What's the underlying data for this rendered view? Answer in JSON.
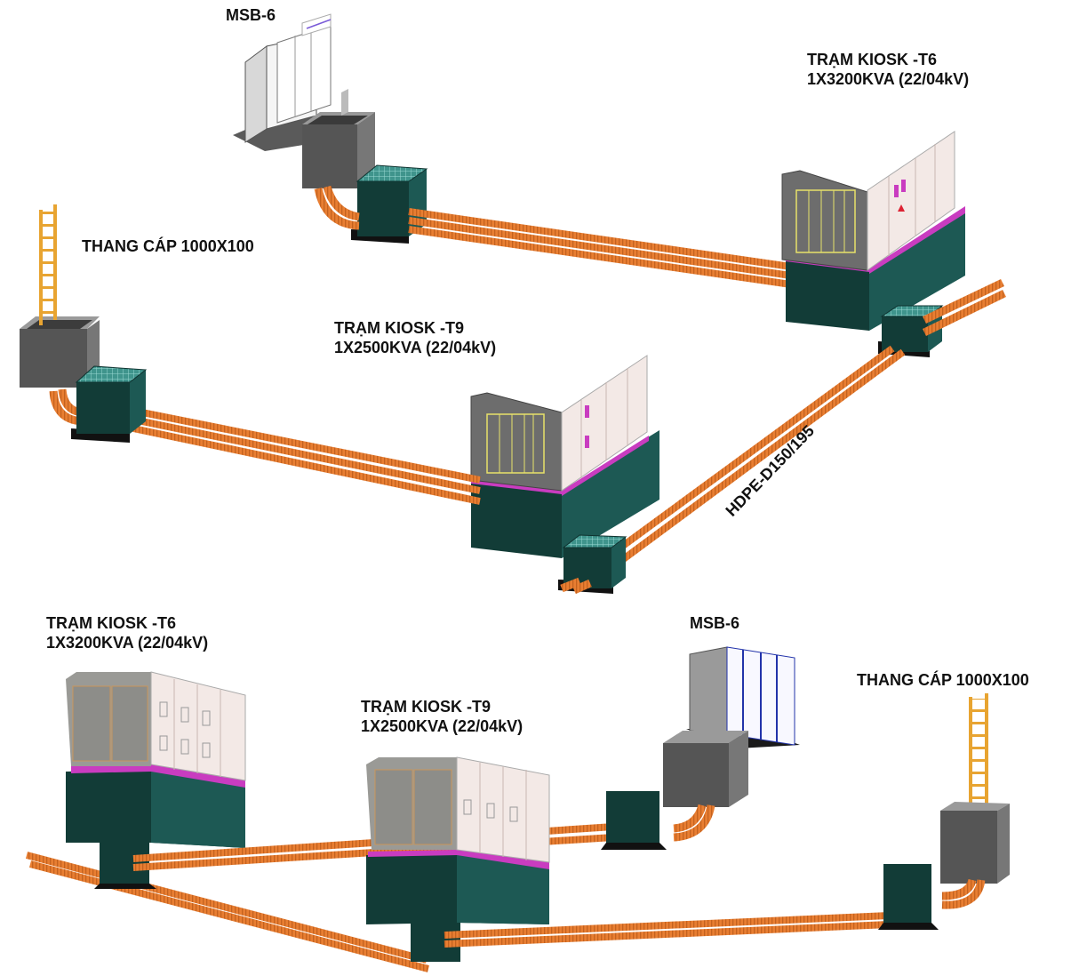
{
  "top_view": {
    "msb": "MSB-6",
    "kiosk_t6": {
      "name": "TRẠM KIOSK -T6",
      "rating": "1X3200KVA (22/04kV)"
    },
    "kiosk_t9": {
      "name": "TRẠM KIOSK -T9",
      "rating": "1X2500KVA (22/04kV)"
    },
    "ladder": "THANG CÁP 1000X100",
    "pipe": "HDPE-D150/195"
  },
  "bottom_view": {
    "kiosk_t6": {
      "name": "TRẠM KIOSK -T6",
      "rating": "1X3200KVA (22/04kV)"
    },
    "kiosk_t9": {
      "name": "TRẠM KIOSK -T9",
      "rating": "1X2500KVA (22/04kV)"
    },
    "msb": "MSB-6",
    "ladder": "THANG CÁP 1000X100"
  },
  "colors": {
    "pipe": "#e87e32",
    "pipe_dark": "#b55416",
    "base_front": "#113b37",
    "base_side": "#1d5954",
    "base_top": "#2b6e68",
    "manhole_grid": "#79c8c3",
    "kiosk_panel": "#f3e9e6",
    "kiosk_door": "#8d8d89",
    "trim": "#c93cc0",
    "ladder": "#e8a431",
    "housing": "#808080"
  }
}
